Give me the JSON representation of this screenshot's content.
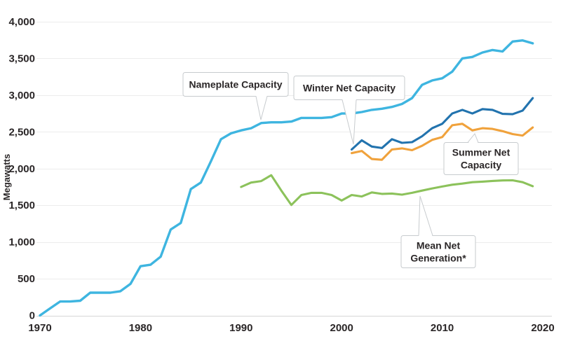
{
  "chart_data": {
    "type": "line",
    "title": "",
    "ylabel": "Megawatts",
    "xlabel": "",
    "x_range": [
      1970,
      2020
    ],
    "y_range": [
      0,
      4000
    ],
    "grid": "horizontal",
    "legend": "inline-callouts",
    "y_ticks": [
      0,
      500,
      1000,
      1500,
      2000,
      2500,
      3000,
      3500,
      4000
    ],
    "y_tick_labels": [
      "0",
      "500",
      "1,000",
      "1,500",
      "2,000",
      "2,500",
      "3,000",
      "3,500",
      "4,000"
    ],
    "x_ticks": [
      1970,
      1980,
      1990,
      2000,
      2010,
      2020
    ],
    "x_tick_labels": [
      "1970",
      "1980",
      "1990",
      "2000",
      "2010",
      "2020"
    ],
    "series": [
      {
        "id": "nameplate-capacity",
        "name": "Nameplate Capacity",
        "color": "#3EB5E0",
        "start_year": 1970,
        "values": [
          0,
          95,
          190,
          190,
          200,
          310,
          310,
          310,
          330,
          430,
          670,
          690,
          800,
          1170,
          1260,
          1720,
          1810,
          2100,
          2400,
          2480,
          2520,
          2550,
          2620,
          2630,
          2630,
          2640,
          2690,
          2690,
          2690,
          2700,
          2750,
          2750,
          2770,
          2800,
          2815,
          2840,
          2880,
          2960,
          3140,
          3200,
          3230,
          3320,
          3500,
          3520,
          3580,
          3615,
          3595,
          3730,
          3745,
          3705
        ]
      },
      {
        "id": "winter-net-capacity",
        "name": "Winter Net Capacity",
        "color": "#2273AE",
        "start_year": 2001,
        "values": [
          2260,
          2385,
          2300,
          2280,
          2400,
          2350,
          2360,
          2440,
          2550,
          2610,
          2750,
          2800,
          2750,
          2810,
          2800,
          2745,
          2740,
          2790,
          2960
        ]
      },
      {
        "id": "summer-net-capacity",
        "name": "Summer Net Capacity",
        "color": "#F0A23C",
        "start_year": 2001,
        "values": [
          2210,
          2240,
          2130,
          2120,
          2260,
          2275,
          2250,
          2310,
          2390,
          2430,
          2590,
          2610,
          2520,
          2550,
          2540,
          2510,
          2470,
          2450,
          2560
        ]
      },
      {
        "id": "mean-net-generation",
        "name": "Mean Net Generation*",
        "color": "#8CC25B",
        "start_year": 1990,
        "values": [
          1750,
          1810,
          1830,
          1910,
          1700,
          1505,
          1640,
          1670,
          1670,
          1640,
          1565,
          1640,
          1620,
          1675,
          1655,
          1660,
          1645,
          1670,
          1700,
          1730,
          1755,
          1780,
          1795,
          1815,
          1822,
          1832,
          1838,
          1840,
          1815,
          1760
        ]
      }
    ],
    "annotations": [
      {
        "id": "nameplate-capacity",
        "lines": [
          "Nameplate Capacity"
        ],
        "points_to": {
          "series": "nameplate-capacity",
          "year": 1992
        }
      },
      {
        "id": "winter-net-capacity",
        "lines": [
          "Winter Net Capacity"
        ],
        "points_to": {
          "series": "winter-net-capacity",
          "year": 2001
        }
      },
      {
        "id": "summer-net-capacity",
        "lines": [
          "Summer Net",
          "Capacity"
        ],
        "points_to": {
          "series": "summer-net-capacity",
          "year": 2013
        }
      },
      {
        "id": "mean-net-generation",
        "lines": [
          "Mean Net",
          "Generation*"
        ],
        "points_to": {
          "series": "mean-net-generation",
          "year": 2008
        }
      }
    ]
  }
}
